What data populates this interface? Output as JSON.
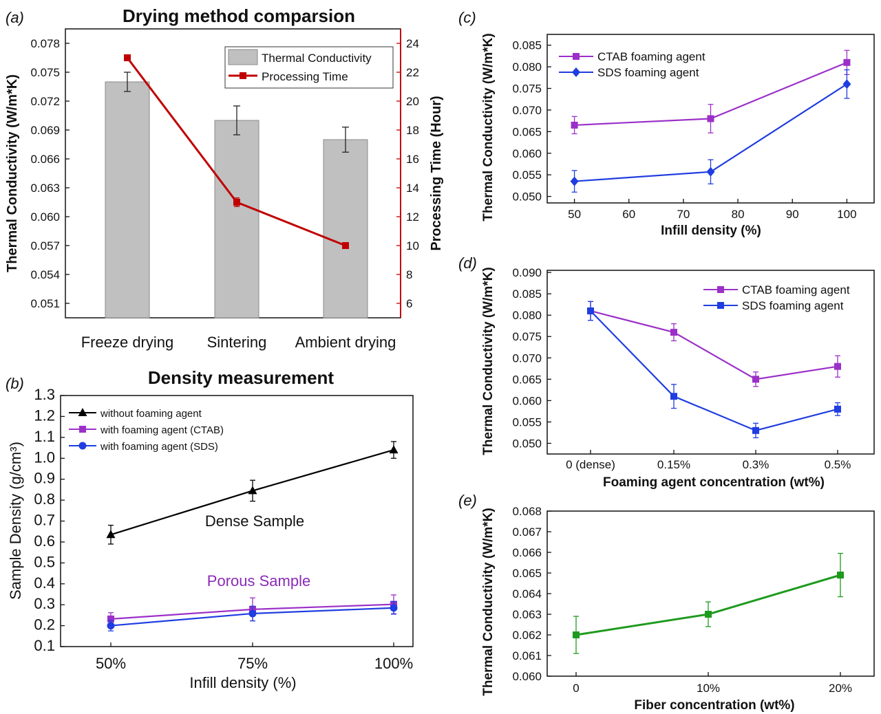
{
  "chart_data": [
    {
      "panel": "(a)",
      "type": "bar",
      "title": "Drying method comparsion",
      "categories": [
        "Freeze drying",
        "Sintering",
        "Ambient drying"
      ],
      "ylabel": "Thermal Conductivity (W/m*K)",
      "ylabel_right": "Processing Time (Hour)",
      "ylim": [
        0.0495,
        0.0795
      ],
      "ylim_right": [
        5,
        25
      ],
      "yticks": [
        "0.051",
        "0.054",
        "0.057",
        "0.060",
        "0.063",
        "0.066",
        "0.069",
        "0.072",
        "0.075",
        "0.078"
      ],
      "yticks_right": [
        "6",
        "8",
        "10",
        "12",
        "14",
        "16",
        "18",
        "20",
        "22",
        "24"
      ],
      "series": [
        {
          "name": "Thermal Conductivity",
          "type": "bar",
          "values": [
            0.074,
            0.07,
            0.068
          ],
          "errors": [
            0.001,
            0.0015,
            0.0013
          ],
          "color": "#c0c0c0"
        },
        {
          "name": "Processing Time",
          "type": "line",
          "axis": "right",
          "values": [
            23,
            13,
            10
          ],
          "errors": [
            0.2,
            0.3,
            0.1
          ],
          "color": "#c00000"
        }
      ],
      "legend": "top-right"
    },
    {
      "panel": "(b)",
      "type": "line",
      "title": "Density measurement",
      "xlabel": "Infill density (%)",
      "ylabel": "Sample Density (g/cm³)",
      "categories": [
        "50%",
        "75%",
        "100%"
      ],
      "ylim": [
        0.1,
        1.3
      ],
      "yticks": [
        "0.1",
        "0.2",
        "0.3",
        "0.4",
        "0.5",
        "0.6",
        "0.7",
        "0.8",
        "0.9",
        "1.0",
        "1.1",
        "1.2",
        "1.3"
      ],
      "series": [
        {
          "name": "without foaming agent",
          "values": [
            0.635,
            0.845,
            1.04
          ],
          "errors": [
            0.045,
            0.05,
            0.04
          ],
          "color": "#000000",
          "marker": "triangle"
        },
        {
          "name": "with foaming agent (CTAB)",
          "values": [
            0.232,
            0.278,
            0.302
          ],
          "errors": [
            0.03,
            0.055,
            0.045
          ],
          "color": "#9b30c8",
          "marker": "square"
        },
        {
          "name": "with foaming agent (SDS)",
          "values": [
            0.2,
            0.258,
            0.285
          ],
          "errors": [
            0.025,
            0.035,
            0.03
          ],
          "color": "#1f3de0",
          "marker": "circle"
        }
      ],
      "annotations": [
        "Dense Sample",
        "Porous Sample"
      ],
      "legend": "top-left"
    },
    {
      "panel": "(c)",
      "type": "line",
      "xlabel": "Infill density (%)",
      "ylabel": "Thermal Conductivity (W/m*K)",
      "xlim": [
        45,
        105
      ],
      "xticks": [
        "50",
        "60",
        "70",
        "80",
        "90",
        "100"
      ],
      "ylim": [
        0.0485,
        0.0875
      ],
      "yticks": [
        "0.050",
        "0.055",
        "0.060",
        "0.065",
        "0.070",
        "0.075",
        "0.080",
        "0.085"
      ],
      "series": [
        {
          "name": "CTAB foaming agent",
          "x": [
            50,
            75,
            100
          ],
          "values": [
            0.0665,
            0.068,
            0.081
          ],
          "errors": [
            0.002,
            0.0033,
            0.0028
          ],
          "color": "#9b30c8",
          "marker": "square"
        },
        {
          "name": "SDS foaming agent",
          "x": [
            50,
            75,
            100
          ],
          "values": [
            0.0535,
            0.0557,
            0.076
          ],
          "errors": [
            0.0025,
            0.0028,
            0.0033
          ],
          "color": "#1f3de0",
          "marker": "diamond"
        }
      ],
      "legend": "top-left"
    },
    {
      "panel": "(d)",
      "type": "line",
      "xlabel": "Foaming agent concentration (wt%)",
      "ylabel": "Thermal Conductivity (W/m*K)",
      "categories": [
        "0 (dense)",
        "0.15%",
        "0.3%",
        "0.5%"
      ],
      "ylim": [
        0.0475,
        0.0905
      ],
      "yticks": [
        "0.050",
        "0.055",
        "0.060",
        "0.065",
        "0.070",
        "0.075",
        "0.080",
        "0.085",
        "0.090"
      ],
      "series": [
        {
          "name": "CTAB foaming agent",
          "values": [
            0.081,
            0.076,
            0.065,
            0.068
          ],
          "errors": [
            0.0022,
            0.002,
            0.0017,
            0.0025
          ],
          "color": "#9b30c8",
          "marker": "square"
        },
        {
          "name": "SDS foaming agent",
          "values": [
            0.081,
            0.061,
            0.053,
            0.058
          ],
          "errors": [
            0.0022,
            0.0028,
            0.0017,
            0.0015
          ],
          "color": "#1f3de0",
          "marker": "square"
        }
      ],
      "legend": "top-right"
    },
    {
      "panel": "(e)",
      "type": "line",
      "xlabel": "Fiber concentration (wt%)",
      "ylabel": "Thermal Conductivity (W/m*K)",
      "categories": [
        "0",
        "10%",
        "20%"
      ],
      "ylim": [
        0.06,
        0.068
      ],
      "yticks": [
        "0.060",
        "0.061",
        "0.062",
        "0.063",
        "0.064",
        "0.065",
        "0.066",
        "0.067",
        "0.068"
      ],
      "series": [
        {
          "values": [
            0.062,
            0.063,
            0.0649
          ],
          "errors": [
            0.0009,
            0.0006,
            0.00105
          ],
          "color": "#1e9a1e",
          "marker": "square"
        }
      ]
    }
  ]
}
